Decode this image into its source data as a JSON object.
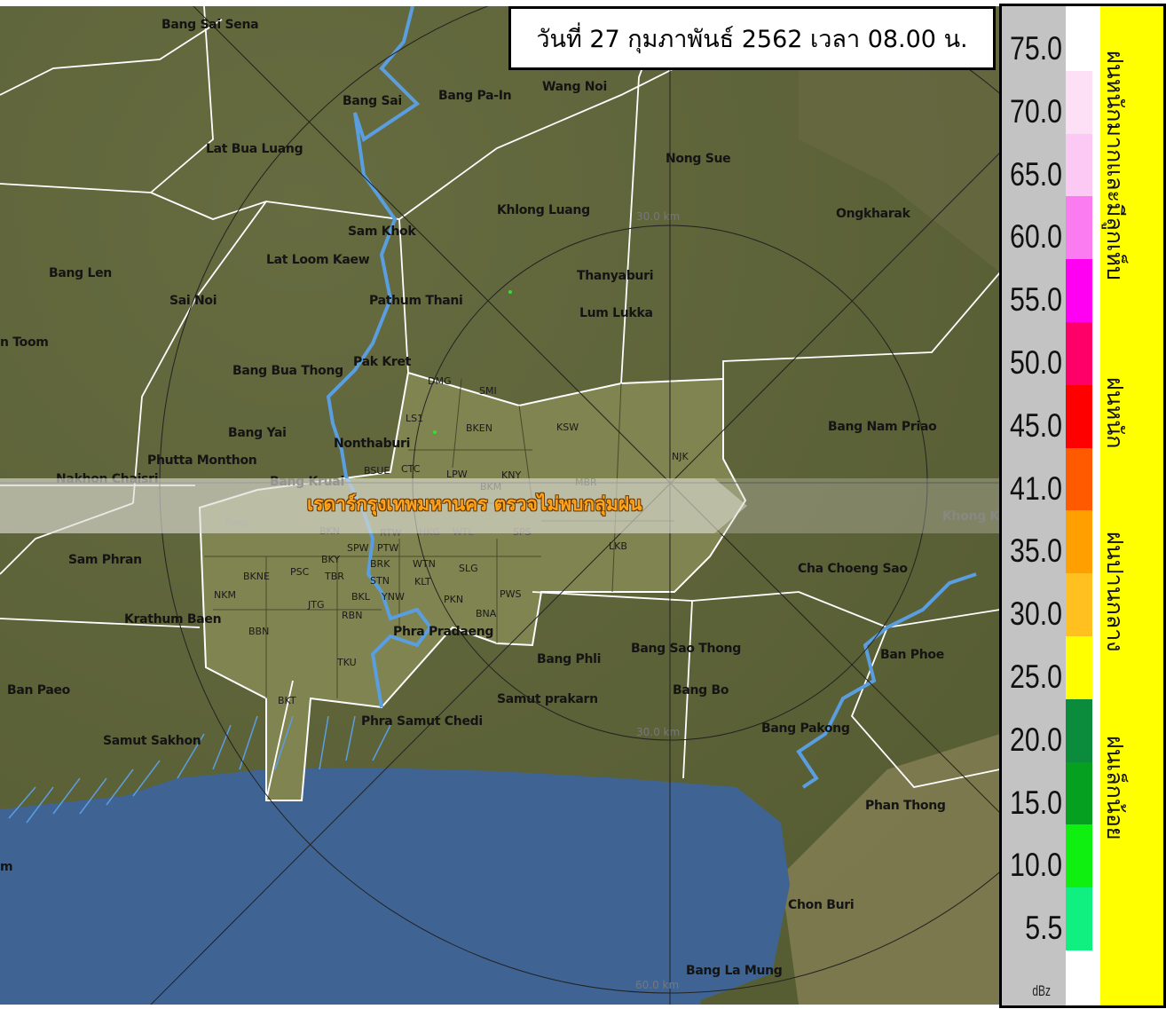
{
  "header": {
    "datetime": "วันที่ 27 กุมภาพันธ์ 2562 เวลา 08.00 น."
  },
  "banner": {
    "message": "เรดาร์กรุงเทพมหานคร ตรวจไม่พบกลุ่มฝน"
  },
  "map": {
    "colors": {
      "land": "#5d6436",
      "bangkok": "#7f8450",
      "sea": "#3f6494",
      "river": "#5b9ee0",
      "boundary": "#ffffff",
      "rings": "#222222"
    },
    "range_labels": [
      "30.0 km",
      "30.0 km",
      "60.0 km"
    ],
    "places": [
      "Bang Sai Sena",
      "Bang Sai",
      "Bang Pa-In",
      "Wang Noi",
      "Lat Bua Luang",
      "Nong Sue",
      "Khlong Luang",
      "Ongkharak",
      "Sam Khok",
      "Lat Loom Kaew",
      "Bang Len",
      "Sai Noi",
      "Pathum Thani",
      "Thanyaburi",
      "Lum Lukka",
      "n Toom",
      "Bang Bua Thong",
      "Pak Kret",
      "Bang Nam Priao",
      "Bang Yai",
      "Nonthaburi",
      "Phutta Monthon",
      "Nakhon Chaisri",
      "Bang Kruai",
      "Khong K",
      "Sam Phran",
      "Cha Choeng Sao",
      "Krathum Baen",
      "Phra Pradaeng",
      "Bang Phli",
      "Bang Sao Thong",
      "Ban Phoe",
      "Ban Paeo",
      "Samut prakarn",
      "Bang Bo",
      "Phra Samut Chedi",
      "Samut Sakhon",
      "Bang Pakong",
      "Phan Thong",
      "Chon Buri",
      "Bang La Mung",
      "m"
    ],
    "districts": [
      "DMG",
      "SMI",
      "LS1",
      "BKEN",
      "KSW",
      "NJK",
      "BSUE",
      "CTC",
      "LPW",
      "KNY",
      "MBR",
      "BKM",
      "TWW",
      "BKN",
      "RTW",
      "HKG",
      "WTL",
      "SPS",
      "LKB",
      "BKNE",
      "PSC",
      "BKY",
      "SPW",
      "PTW",
      "BRK",
      "TBR",
      "WTN",
      "KLT",
      "SLG",
      "NKM",
      "JTG",
      "STN",
      "BKL",
      "YNW",
      "PWS",
      "PKN",
      "RBN",
      "BBN",
      "BNA",
      "TKU",
      "BKT"
    ]
  },
  "legend": {
    "values": [
      "75.0",
      "70.0",
      "65.0",
      "60.0",
      "55.0",
      "50.0",
      "45.0",
      "41.0",
      "35.0",
      "30.0",
      "25.0",
      "20.0",
      "15.0",
      "10.0",
      "5.5"
    ],
    "colors": [
      "#ffffff",
      "#fde0f6",
      "#fcc8f4",
      "#fb7cf0",
      "#ff00f2",
      "#ff0068",
      "#ff0000",
      "#ff5a00",
      "#ffa000",
      "#ffc020",
      "#ffff00",
      "#0b8c3c",
      "#06a020",
      "#10f010",
      "#10f080"
    ],
    "unit": "dBz",
    "categories": [
      "ฝนหนักมากและมีลูกเห็บ",
      "ฝนหนัก",
      "ฝนปานกลาง",
      "ฝนเล็กน้อย"
    ]
  }
}
